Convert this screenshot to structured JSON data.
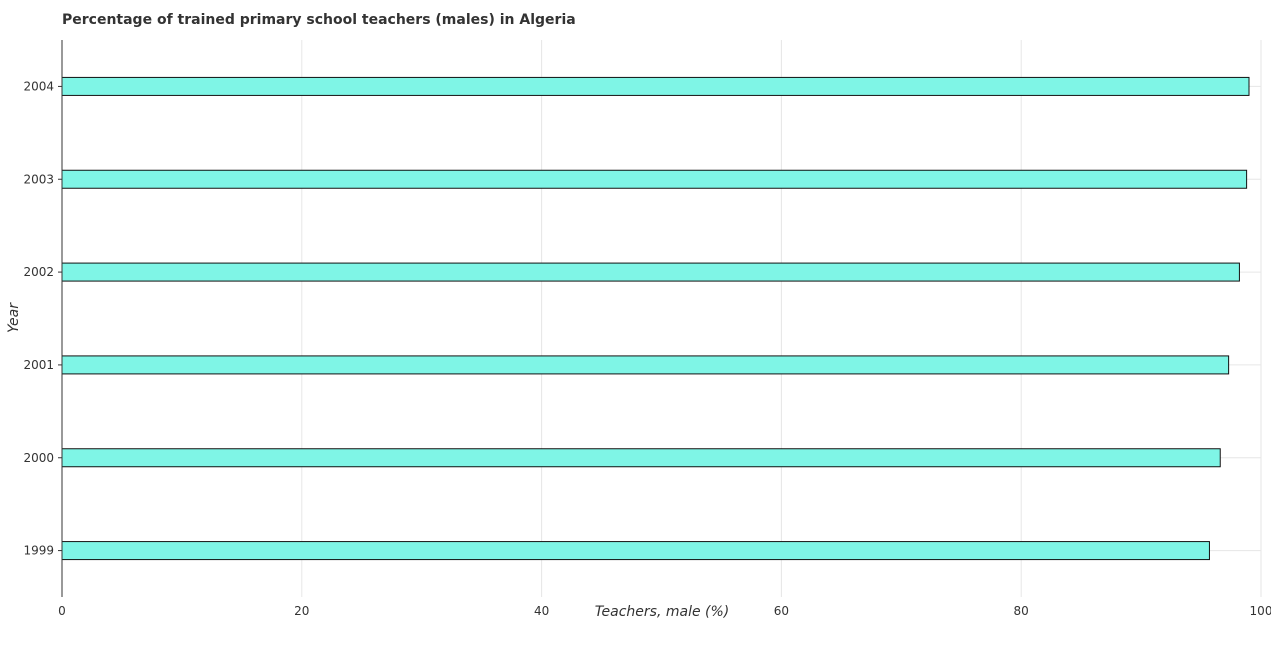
{
  "chart_data": {
    "type": "bar",
    "orientation": "horizontal",
    "title": "Percentage of trained primary school teachers (males) in Algeria",
    "xlabel": "Teachers, male (%)",
    "ylabel": "Year",
    "categories": [
      "1999",
      "2000",
      "2001",
      "2002",
      "2003",
      "2004"
    ],
    "values": [
      95.7,
      96.6,
      97.3,
      98.2,
      98.8,
      99.0
    ],
    "xlim": [
      0,
      100
    ],
    "xticks": [
      "0",
      "20",
      "40",
      "60",
      "80",
      "100"
    ],
    "grid": true,
    "bar_color": "#7ff5e6"
  }
}
